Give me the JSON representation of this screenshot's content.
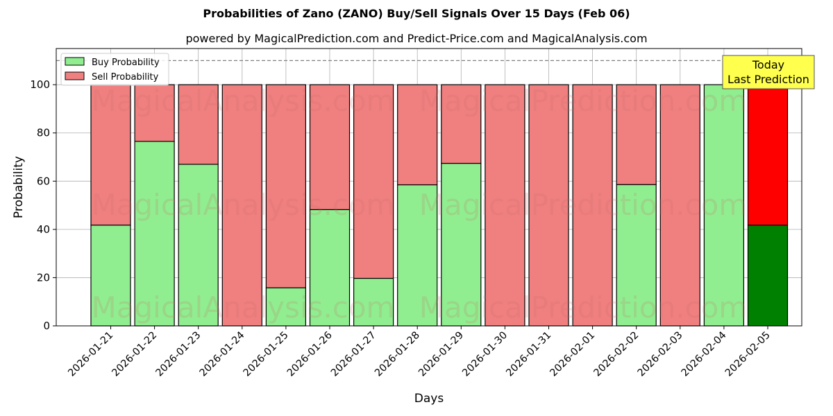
{
  "chart_data": {
    "type": "bar",
    "stacked": true,
    "title": "Probabilities of Zano (ZANO) Buy/Sell Signals Over 15 Days (Feb 06)",
    "subtitle": "powered by MagicalPrediction.com and Predict-Price.com and MagicalAnalysis.com",
    "xlabel": "Days",
    "ylabel": "Probability",
    "ylim": [
      0,
      115
    ],
    "yticks": [
      0,
      20,
      40,
      60,
      80,
      100
    ],
    "grid": true,
    "legend_position": "upper left",
    "categories": [
      "2026-01-21",
      "2026-01-22",
      "2026-01-23",
      "2026-01-24",
      "2026-01-25",
      "2026-01-26",
      "2026-01-27",
      "2026-01-28",
      "2026-01-29",
      "2026-01-30",
      "2026-01-31",
      "2026-02-01",
      "2026-02-02",
      "2026-02-03",
      "2026-02-04",
      "2026-02-05"
    ],
    "series": [
      {
        "name": "Buy Probability",
        "color": "#90ee90",
        "values": [
          41.8,
          76.5,
          67.0,
          0,
          15.8,
          48.2,
          19.7,
          58.5,
          67.4,
          0,
          0,
          0,
          58.6,
          0,
          100,
          41.8
        ]
      },
      {
        "name": "Sell Probability",
        "color": "#f08080",
        "values": [
          58.2,
          23.5,
          33.0,
          100,
          84.2,
          51.8,
          80.3,
          41.5,
          32.6,
          100,
          100,
          100,
          41.4,
          100,
          0,
          58.2
        ]
      }
    ],
    "highlight_last": {
      "buy_color": "#008000",
      "sell_color": "#ff0000"
    },
    "reference_line": {
      "y": 110,
      "style": "dashed",
      "color": "#808080"
    },
    "annotation": {
      "text_line1": "Today",
      "text_line2": "Last Prediction",
      "bg": "#ffff4d"
    },
    "watermarks": [
      "MagicalAnalysis.com",
      "MagicalPrediction.com"
    ]
  }
}
